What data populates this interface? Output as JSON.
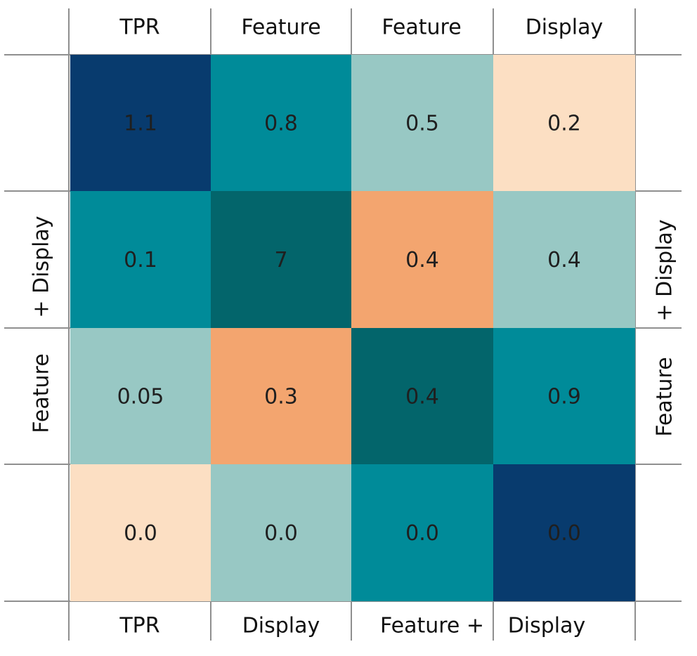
{
  "chart_data": {
    "type": "heatmap",
    "top_labels": [
      "TPR",
      "Feature",
      "Feature",
      "Display"
    ],
    "bottom_labels": [
      "TPR",
      "Display",
      "Feature +",
      "Display"
    ],
    "left_label_lines": [
      "+ Display",
      "Feature"
    ],
    "right_label_lines": [
      "+ Display",
      "Feature"
    ],
    "rows": [
      [
        {
          "text": "1.1",
          "color": "#083B6E"
        },
        {
          "text": "0.8",
          "color": "#008B99"
        },
        {
          "text": "0.5",
          "color": "#98C8C4"
        },
        {
          "text": "0.2",
          "color": "#FCDFC3"
        }
      ],
      [
        {
          "text": "0.1",
          "color": "#008B99"
        },
        {
          "text": "7",
          "color": "#03656B"
        },
        {
          "text": "0.4",
          "color": "#F3A56F"
        },
        {
          "text": "0.4",
          "color": "#98C8C4"
        }
      ],
      [
        {
          "text": "0.05",
          "color": "#98C8C4"
        },
        {
          "text": "0.3",
          "color": "#F3A56F"
        },
        {
          "text": "0.4",
          "color": "#03656B"
        },
        {
          "text": "0.9",
          "color": "#008B99"
        }
      ],
      [
        {
          "text": "0.0",
          "color": "#FCDFC3"
        },
        {
          "text": "0.0",
          "color": "#98C8C4"
        },
        {
          "text": "0.0",
          "color": "#008B99"
        },
        {
          "text": "0.0",
          "color": "#083B6E"
        }
      ]
    ]
  }
}
